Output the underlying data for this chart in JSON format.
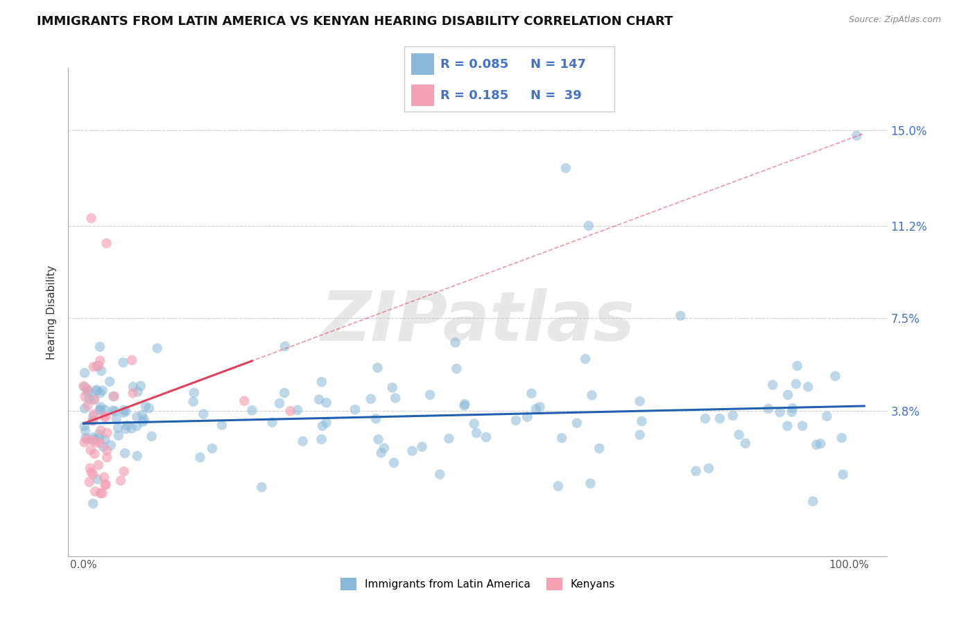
{
  "title": "IMMIGRANTS FROM LATIN AMERICA VS KENYAN HEARING DISABILITY CORRELATION CHART",
  "source": "Source: ZipAtlas.com",
  "ylabel": "Hearing Disability",
  "legend_label1": "Immigrants from Latin America",
  "legend_label2": "Kenyans",
  "r1": 0.085,
  "n1": 147,
  "r2": 0.185,
  "n2": 39,
  "color_blue": "#8ab8d8",
  "color_pink": "#f4a0b5",
  "color_blue_line": "#2060b0",
  "color_pink_line": "#e0405a",
  "ytick_labels": [
    "3.8%",
    "7.5%",
    "11.2%",
    "15.0%"
  ],
  "ytick_values": [
    0.038,
    0.075,
    0.112,
    0.15
  ],
  "xtick_labels": [
    "0.0%",
    "100.0%"
  ],
  "xtick_values": [
    0.0,
    1.0
  ],
  "xlim": [
    -0.02,
    1.05
  ],
  "ylim": [
    -0.02,
    0.175
  ],
  "title_fontsize": 13,
  "axis_label_fontsize": 11,
  "tick_fontsize": 11,
  "watermark": "ZIPatlas",
  "background_color": "#ffffff",
  "grid_color": "#bbbbbb"
}
